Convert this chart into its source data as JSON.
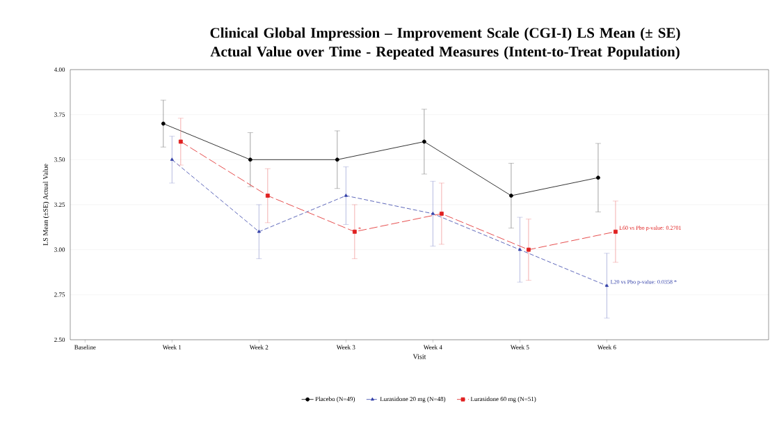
{
  "chart_data": {
    "type": "line",
    "title": "Clinical Global Impression – Improvement Scale (CGI-I) LS Mean (± SE) Actual Value over Time - Repeated Measures (Intent-to-Treat Population)",
    "xlabel": "Visit",
    "ylabel": "LS Mean (±SE) Actual Value",
    "categories": [
      "Baseline",
      "Week 1",
      "Week 2",
      "Week 3",
      "Week 4",
      "Week 5",
      "Week 6"
    ],
    "series": [
      {
        "name": "Placebo (N=49)",
        "color": "#000000",
        "marker": "circle",
        "line_style": "solid",
        "values": [
          null,
          3.7,
          3.5,
          3.5,
          3.6,
          3.3,
          3.4
        ],
        "errors": [
          null,
          0.13,
          0.15,
          0.16,
          0.18,
          0.18,
          0.19
        ]
      },
      {
        "name": "Lurasidone 20 mg (N=48)",
        "color": "#3340a8",
        "marker": "triangle",
        "line_style": "dashed",
        "values": [
          null,
          3.5,
          3.1,
          3.3,
          3.2,
          3.0,
          2.8
        ],
        "errors": [
          null,
          0.13,
          0.15,
          0.16,
          0.18,
          0.18,
          0.18
        ]
      },
      {
        "name": "Lurasidone 60 mg (N=51)",
        "color": "#e02020",
        "marker": "square",
        "line_style": "dashed",
        "values": [
          null,
          3.6,
          3.3,
          3.1,
          3.2,
          3.0,
          3.1
        ],
        "errors": [
          null,
          0.13,
          0.15,
          0.15,
          0.17,
          0.17,
          0.17
        ]
      }
    ],
    "ylim": [
      2.5,
      4.0
    ],
    "yticks": [
      {
        "value": 2.5,
        "label": "2.50"
      },
      {
        "value": 2.75,
        "label": "2.75"
      },
      {
        "value": 3.0,
        "label": "3.00"
      },
      {
        "value": 3.25,
        "label": "3.25"
      },
      {
        "value": 3.5,
        "label": "3.50"
      },
      {
        "value": 3.75,
        "label": "3.75"
      },
      {
        "value": 4.0,
        "label": "4.00"
      }
    ],
    "grid": "y",
    "legend": "bottom",
    "annotations": [
      {
        "text": "*",
        "x": "Week 3",
        "y": 3.1
      },
      {
        "text": "L60 vs Pbo p-value: 0.2701",
        "x": "Week 6",
        "y": 3.1
      },
      {
        "text": "L20 vs Pbo p-value: 0.0358 *",
        "x": "Week 6",
        "y": 2.8
      }
    ]
  }
}
